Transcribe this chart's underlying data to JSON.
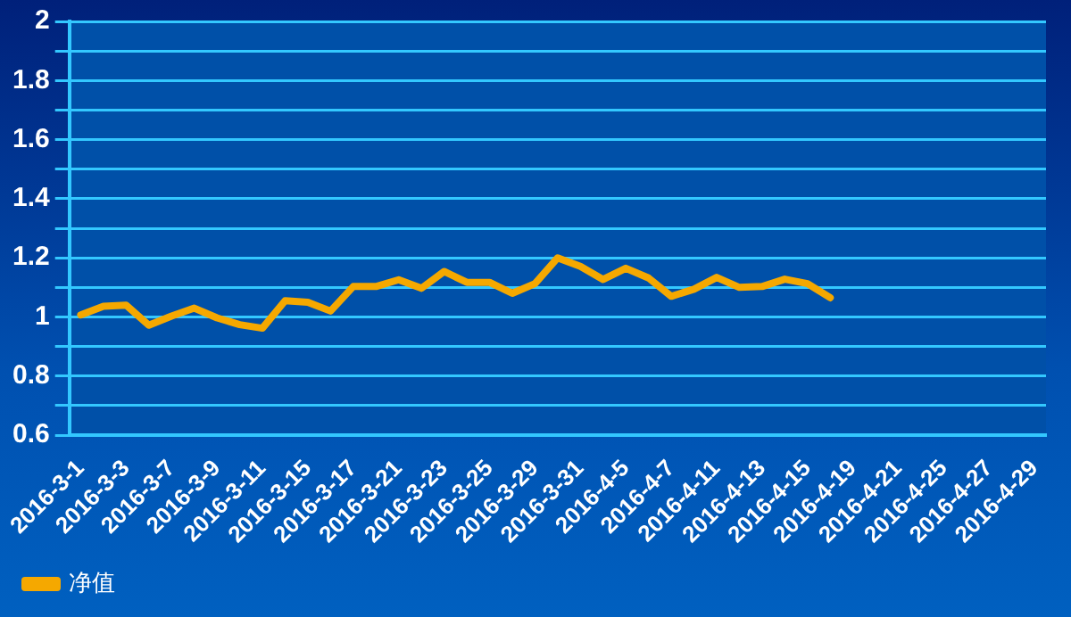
{
  "chart_data": {
    "type": "line",
    "categories": [
      "2016-3-1",
      null,
      "2016-3-3",
      null,
      "2016-3-7",
      null,
      "2016-3-9",
      null,
      "2016-3-11",
      null,
      "2016-3-15",
      null,
      "2016-3-17",
      null,
      "2016-3-21",
      null,
      "2016-3-23",
      null,
      "2016-3-25",
      null,
      "2016-3-29",
      null,
      "2016-3-31",
      null,
      "2016-4-5",
      null,
      "2016-4-7",
      null,
      "2016-4-11",
      null,
      "2016-4-13",
      null,
      "2016-4-15",
      null,
      "2016-4-19",
      null,
      "2016-4-21",
      null,
      "2016-4-25",
      null,
      "2016-4-27",
      null,
      "2016-4-29"
    ],
    "series": [
      {
        "name": "净值",
        "color": "#f5a800",
        "values": [
          1.007,
          1.036,
          1.04,
          0.972,
          1.003,
          1.03,
          0.997,
          0.974,
          0.962,
          1.055,
          1.05,
          1.02,
          1.103,
          1.103,
          1.126,
          1.097,
          1.154,
          1.117,
          1.117,
          1.08,
          1.113,
          1.2,
          1.171,
          1.127,
          1.165,
          1.132,
          1.07,
          1.094,
          1.134,
          1.1,
          1.103,
          1.128,
          1.113,
          1.065,
          null,
          null,
          null,
          null,
          null,
          null,
          null,
          null,
          null
        ]
      }
    ],
    "ylim": [
      0.6,
      2
    ],
    "yticks": [
      0.6,
      {
        "value": 0.7,
        "label": null
      },
      0.8,
      {
        "value": 0.9,
        "label": null
      },
      1,
      {
        "value": 1.1,
        "label": null
      },
      1.2,
      {
        "value": 1.3,
        "label": null
      },
      1.4,
      {
        "value": 1.5,
        "label": null
      },
      1.6,
      {
        "value": 1.7,
        "label": null
      },
      1.8,
      {
        "value": 1.9,
        "label": null
      },
      2
    ],
    "grid": "y",
    "legend": "bottom left",
    "marker": "none",
    "line_style": "solid"
  }
}
